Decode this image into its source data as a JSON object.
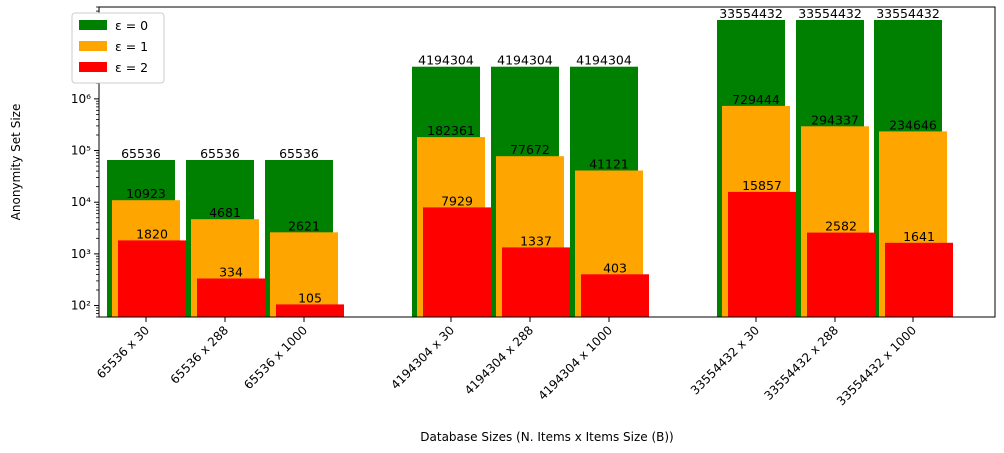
{
  "chart_data": {
    "type": "bar",
    "xlabel": "Database Sizes (N. Items x Items Size (B))",
    "ylabel": "Anonymity Set Size",
    "yscale": "log",
    "ylim": [
      60,
      60000000
    ],
    "grid": false,
    "legend_position": "top-left",
    "categories": [
      "65536 x 30",
      "65536 x 288",
      "65536 x 1000",
      "4194304 x 30",
      "4194304 x 288",
      "4194304 x 1000",
      "33554432 x 30",
      "33554432 x 288",
      "33554432 x 1000"
    ],
    "series": [
      {
        "name": "ε = 0",
        "color": "#008000",
        "values": [
          65536,
          65536,
          65536,
          4194304,
          4194304,
          4194304,
          33554432,
          33554432,
          33554432
        ]
      },
      {
        "name": "ε = 1",
        "color": "#FFA500",
        "values": [
          10923,
          4681,
          2621,
          182361,
          77672,
          41121,
          729444,
          294337,
          234646
        ]
      },
      {
        "name": "ε = 2",
        "color": "#FF0000",
        "values": [
          1820,
          334,
          105,
          7929,
          1337,
          403,
          15857,
          2582,
          1641
        ]
      }
    ],
    "y_ticks": [
      {
        "value": 100,
        "label": "10²"
      },
      {
        "value": 1000,
        "label": "10³"
      },
      {
        "value": 10000,
        "label": "10⁴"
      },
      {
        "value": 100000,
        "label": "10⁵"
      },
      {
        "value": 1000000,
        "label": "10⁶"
      },
      {
        "value": 10000000,
        "label": "10⁷"
      }
    ]
  }
}
